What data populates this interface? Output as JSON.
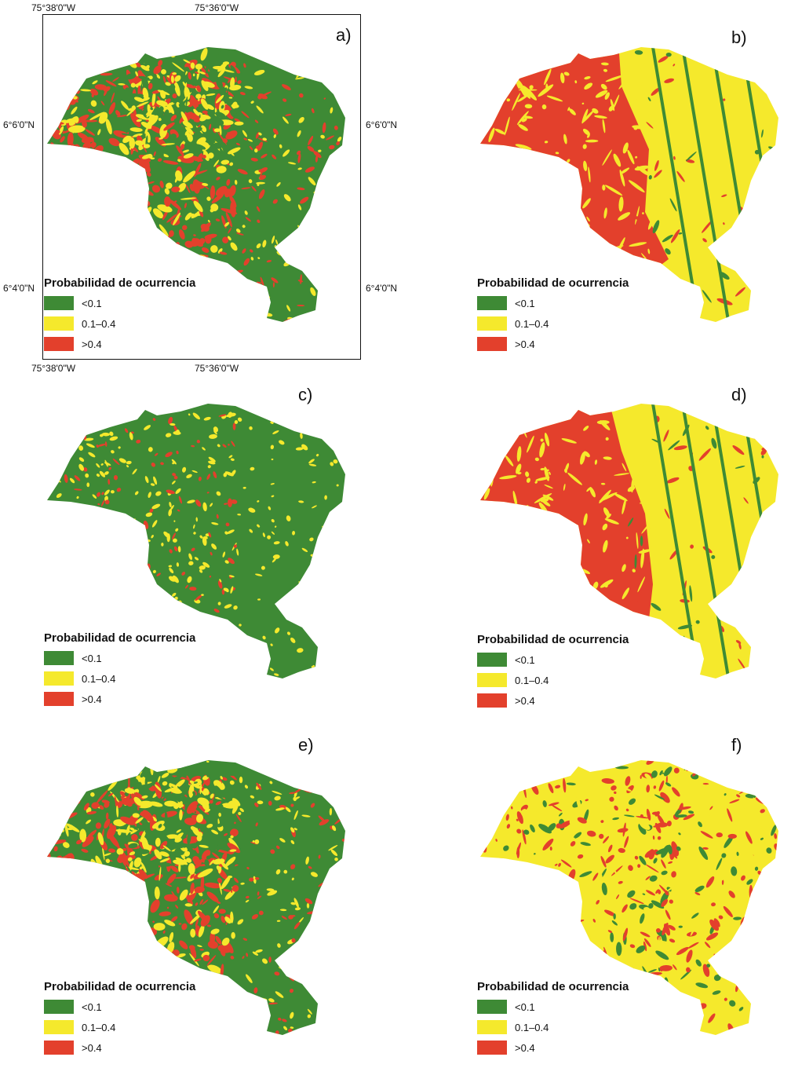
{
  "colors": {
    "low": "#3e8a35",
    "mid": "#f5e92c",
    "high": "#e3402c"
  },
  "legend": {
    "title": "Probabilidad de ocurrencia",
    "items": [
      {
        "label": "<0.1",
        "color": "#3e8a35"
      },
      {
        "label": "0.1–0.4",
        "color": "#f5e92c"
      },
      {
        "label": ">0.4",
        "color": "#e3402c"
      }
    ]
  },
  "coordinates": {
    "top_left": "75°38'0\"W",
    "top_mid": "75°36'0\"W",
    "bottom_left": "75°38'0\"W",
    "bottom_mid": "75°36'0\"W",
    "left_upper": "6°6'0\"N",
    "left_lower": "6°4'0\"N",
    "right_upper": "6°6'0\"N",
    "right_lower": "6°4'0\"N"
  },
  "panels": [
    {
      "label": "a)",
      "base": "low"
    },
    {
      "label": "b)",
      "base": "mid"
    },
    {
      "label": "c)",
      "base": "low"
    },
    {
      "label": "d)",
      "base": "mid"
    },
    {
      "label": "e)",
      "base": "low"
    },
    {
      "label": "f)",
      "base": "mid"
    }
  ]
}
